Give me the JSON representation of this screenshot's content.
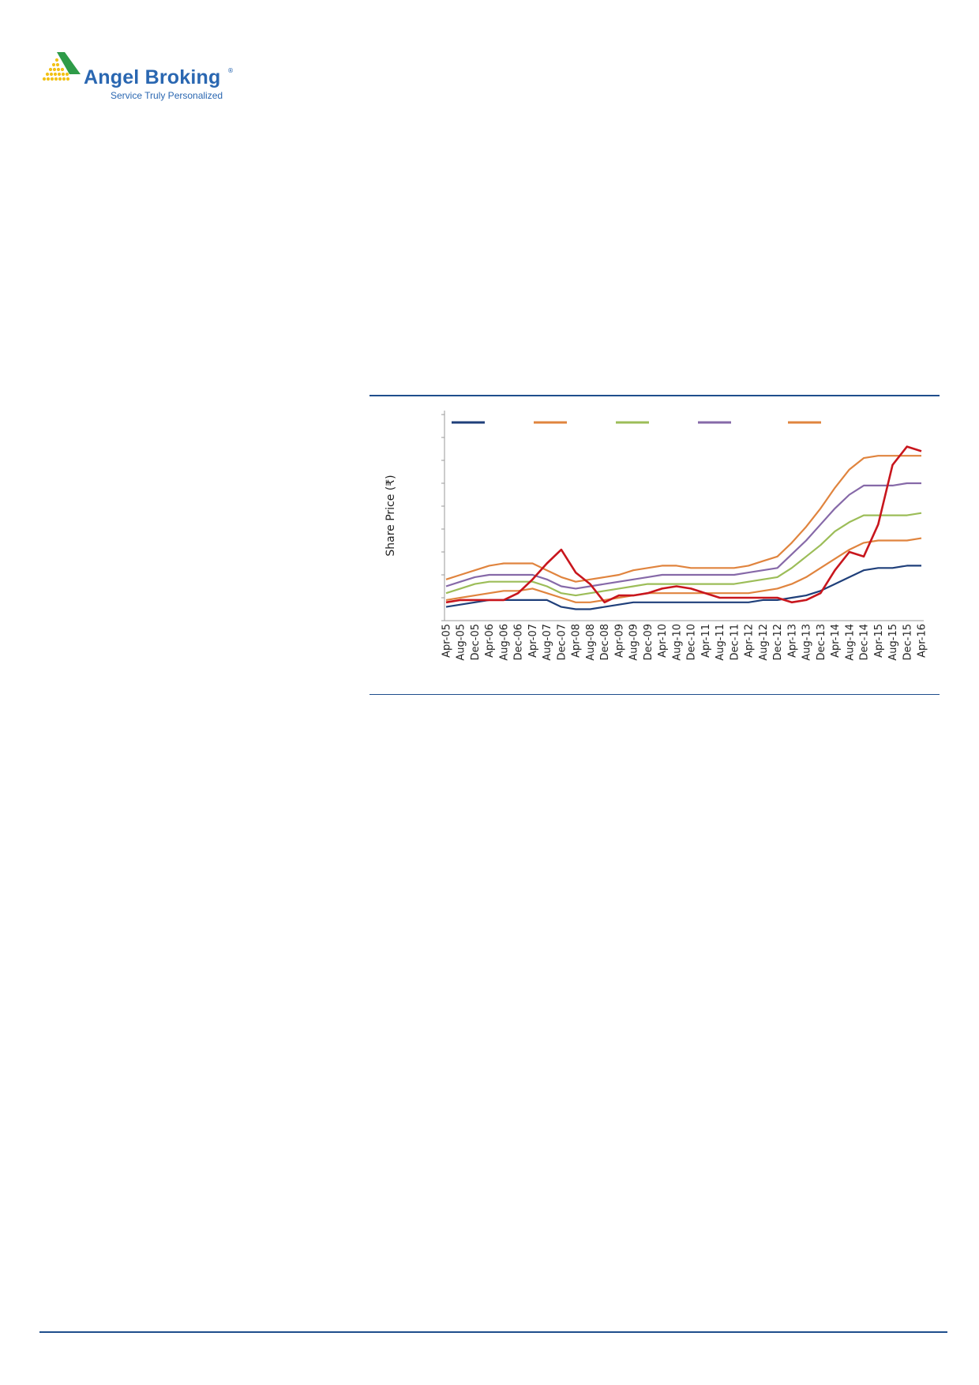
{
  "header": {
    "brand_name": "Angel Broking",
    "brand_reg": "®",
    "tagline": "Service Truly Personalized"
  },
  "chart_data": {
    "type": "line",
    "title": "",
    "xlabel": "",
    "ylabel": "Share Price (₹)",
    "ylim": [
      0,
      9
    ],
    "grid": false,
    "legend_position": "top",
    "x": [
      "Apr-05",
      "Aug-05",
      "Dec-05",
      "Apr-06",
      "Aug-06",
      "Dec-06",
      "Apr-07",
      "Aug-07",
      "Dec-07",
      "Apr-08",
      "Aug-08",
      "Dec-08",
      "Apr-09",
      "Aug-09",
      "Dec-09",
      "Apr-10",
      "Aug-10",
      "Dec-10",
      "Apr-11",
      "Aug-11",
      "Dec-11",
      "Apr-12",
      "Aug-12",
      "Dec-12",
      "Apr-13",
      "Aug-13",
      "Dec-13",
      "Apr-14",
      "Aug-14",
      "Dec-14",
      "Apr-15",
      "Aug-15",
      "Dec-15",
      "Apr-16"
    ],
    "series": [
      {
        "color": "#1f3f7a",
        "values": [
          0.6,
          0.7,
          0.8,
          0.9,
          0.9,
          0.9,
          0.9,
          0.9,
          0.6,
          0.5,
          0.5,
          0.6,
          0.7,
          0.8,
          0.8,
          0.8,
          0.8,
          0.8,
          0.8,
          0.8,
          0.8,
          0.8,
          0.9,
          0.9,
          1.0,
          1.1,
          1.3,
          1.6,
          1.9,
          2.2,
          2.3,
          2.3,
          2.4,
          2.4
        ]
      },
      {
        "color": "#e0843e",
        "values": [
          0.9,
          1.0,
          1.1,
          1.2,
          1.3,
          1.3,
          1.4,
          1.2,
          1.0,
          0.8,
          0.8,
          0.9,
          1.0,
          1.1,
          1.2,
          1.2,
          1.2,
          1.2,
          1.2,
          1.2,
          1.2,
          1.2,
          1.3,
          1.4,
          1.6,
          1.9,
          2.3,
          2.7,
          3.1,
          3.4,
          3.5,
          3.5,
          3.5,
          3.6
        ]
      },
      {
        "color": "#9cbd58",
        "values": [
          1.2,
          1.4,
          1.6,
          1.7,
          1.7,
          1.7,
          1.7,
          1.5,
          1.2,
          1.1,
          1.2,
          1.3,
          1.4,
          1.5,
          1.6,
          1.6,
          1.6,
          1.6,
          1.6,
          1.6,
          1.6,
          1.7,
          1.8,
          1.9,
          2.3,
          2.8,
          3.3,
          3.9,
          4.3,
          4.6,
          4.6,
          4.6,
          4.6,
          4.7
        ]
      },
      {
        "color": "#8669a8",
        "values": [
          1.5,
          1.7,
          1.9,
          2.0,
          2.0,
          2.0,
          2.0,
          1.8,
          1.5,
          1.4,
          1.5,
          1.6,
          1.7,
          1.8,
          1.9,
          2.0,
          2.0,
          2.0,
          2.0,
          2.0,
          2.0,
          2.1,
          2.2,
          2.3,
          2.9,
          3.5,
          4.2,
          4.9,
          5.5,
          5.9,
          5.9,
          5.9,
          6.0,
          6.0
        ]
      },
      {
        "color": "#e0843e",
        "values": [
          1.8,
          2.0,
          2.2,
          2.4,
          2.5,
          2.5,
          2.5,
          2.2,
          1.9,
          1.7,
          1.8,
          1.9,
          2.0,
          2.2,
          2.3,
          2.4,
          2.4,
          2.3,
          2.3,
          2.3,
          2.3,
          2.4,
          2.6,
          2.8,
          3.4,
          4.1,
          4.9,
          5.8,
          6.6,
          7.1,
          7.2,
          7.2,
          7.2,
          7.2
        ]
      },
      {
        "color": "#c8161d",
        "values": [
          0.8,
          0.9,
          0.9,
          0.9,
          0.9,
          1.2,
          1.8,
          2.5,
          3.1,
          2.1,
          1.6,
          0.8,
          1.1,
          1.1,
          1.2,
          1.4,
          1.5,
          1.4,
          1.2,
          1.0,
          1.0,
          1.0,
          1.0,
          1.0,
          0.8,
          0.9,
          1.2,
          2.2,
          3.0,
          2.8,
          4.2,
          6.8,
          7.6,
          7.4
        ]
      }
    ]
  }
}
